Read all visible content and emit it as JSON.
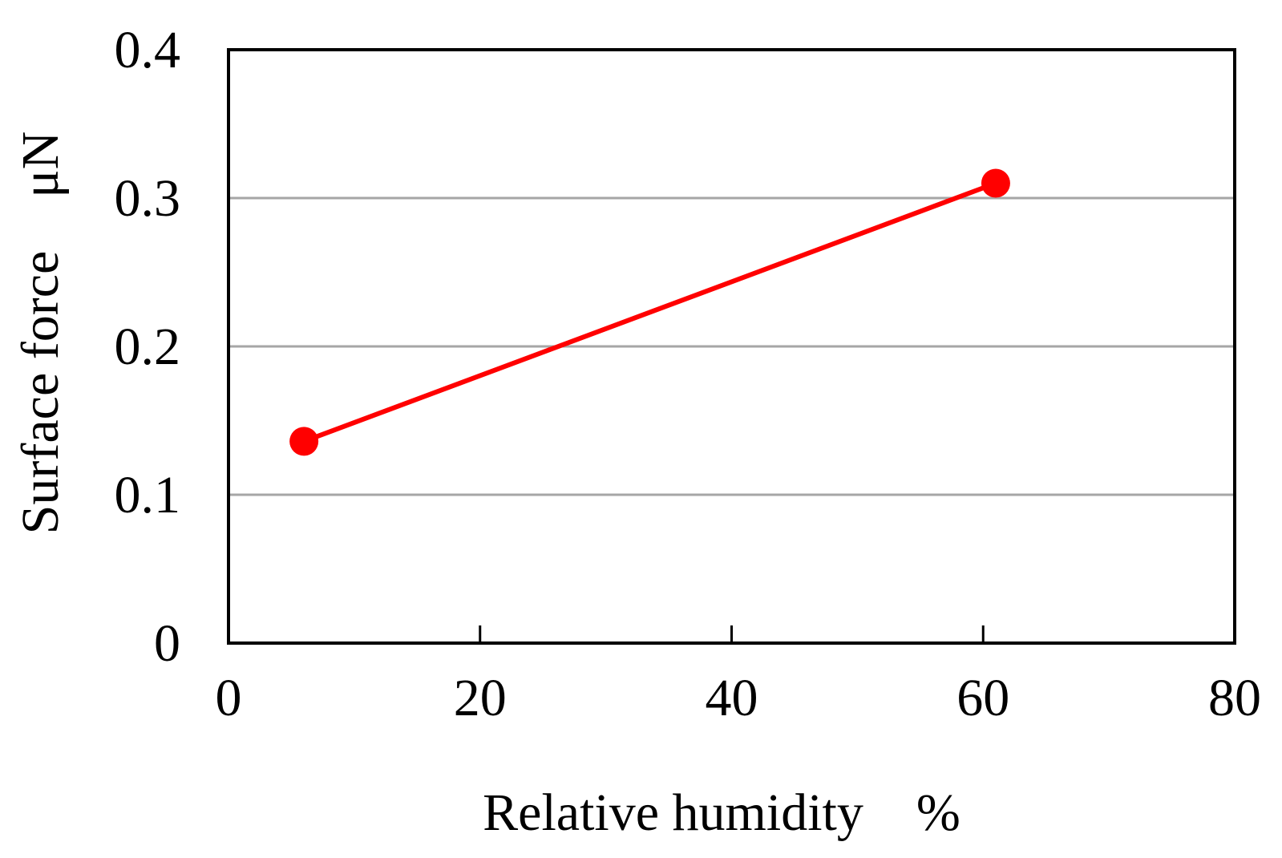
{
  "chart_data": {
    "type": "line",
    "title": "",
    "xlabel": "Relative humidity　%",
    "ylabel": "Surface force　μN",
    "xlim": [
      0,
      80
    ],
    "ylim": [
      0,
      0.4
    ],
    "x_ticks": [
      "0",
      "20",
      "40",
      "60",
      "80"
    ],
    "y_ticks": [
      "0",
      "0.1",
      "0.2",
      "0.3",
      "0.4"
    ],
    "grid": "horizontal",
    "legend": "none",
    "series": [
      {
        "color": "#ff0000",
        "marker": "circle",
        "points": [
          {
            "x": 6,
            "y": 0.136
          },
          {
            "x": 61,
            "y": 0.31
          }
        ]
      }
    ]
  }
}
